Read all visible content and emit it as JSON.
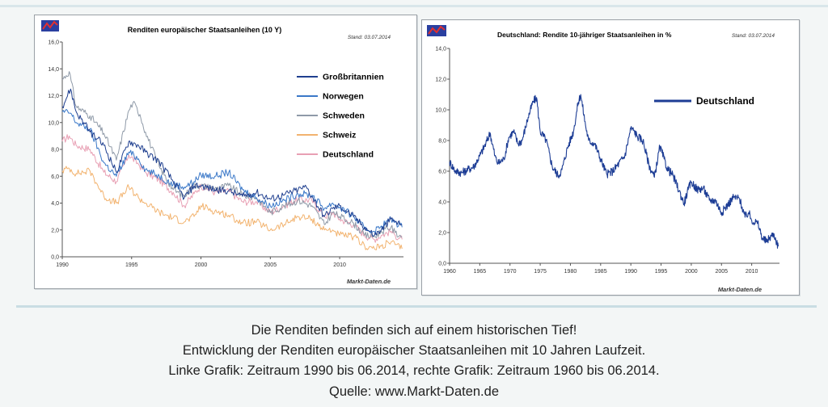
{
  "chart_data": [
    {
      "type": "line",
      "title": "Renditen europäischer Staatsanleihen (10 Y)",
      "stand": "Stand: 03.07.2014",
      "source_label": "Markt-Daten.de",
      "ylim": [
        0,
        16
      ],
      "yticks": [
        "0,0",
        "2,0",
        "4,0",
        "6,0",
        "8,0",
        "10,0",
        "12,0",
        "14,0",
        "16,0"
      ],
      "xlim": [
        1990,
        2014.6
      ],
      "xticks": [
        "1990",
        "1995",
        "2000",
        "2005",
        "2010"
      ],
      "grid": false,
      "legend_position": "top-right",
      "series": [
        {
          "name": "Großbritannien",
          "color": "#1f3f8f",
          "x": [
            1990,
            1990.6,
            1991,
            1992,
            1993,
            1993.9,
            1994.8,
            1995.5,
            1996,
            1997,
            1998,
            1998.8,
            1999.5,
            2000,
            2001,
            2002,
            2003,
            2004,
            2005,
            2006,
            2007,
            2007.6,
            2008,
            2008.9,
            2009.5,
            2010,
            2011,
            2011.8,
            2012.5,
            2013,
            2013.7,
            2014,
            2014.5
          ],
          "y": [
            11.2,
            12.5,
            10.8,
            9.3,
            8.3,
            6.3,
            8.6,
            8.3,
            7.8,
            7.1,
            5.6,
            4.4,
            5.3,
            5.3,
            5.0,
            4.9,
            4.5,
            4.8,
            4.3,
            4.6,
            5.0,
            5.2,
            4.5,
            3.0,
            3.6,
            3.8,
            3.0,
            2.2,
            1.6,
            2.0,
            2.8,
            2.6,
            2.4
          ]
        },
        {
          "name": "Norwegen",
          "color": "#3a78c8",
          "x": [
            1990,
            1990.6,
            1991,
            1992,
            1993,
            1993.9,
            1994.8,
            1995.5,
            1996,
            1997,
            1998,
            1998.8,
            1999.5,
            2000,
            2001,
            2002,
            2003,
            2004,
            2005,
            2006,
            2007,
            2008,
            2008.9,
            2009.5,
            2010,
            2011,
            2011.8,
            2012.5,
            2013,
            2013.7,
            2014,
            2014.5
          ],
          "y": [
            10.8,
            10.7,
            10.0,
            9.5,
            7.0,
            6.0,
            7.8,
            7.3,
            6.5,
            6.0,
            5.4,
            5.2,
            5.6,
            6.1,
            6.0,
            6.3,
            5.0,
            4.4,
            3.8,
            4.2,
            4.7,
            4.6,
            3.6,
            4.0,
            3.7,
            3.0,
            2.1,
            1.9,
            2.3,
            2.8,
            2.6,
            2.2
          ]
        },
        {
          "name": "Schweden",
          "color": "#8f9aa8",
          "x": [
            1990,
            1990.5,
            1991,
            1992,
            1993,
            1993.9,
            1994.8,
            1995.1,
            1995.6,
            1996,
            1996.8,
            1997,
            1998,
            1998.8,
            1999.5,
            2000,
            2001,
            2002,
            2003,
            2004,
            2005,
            2006,
            2007,
            2008,
            2008.9,
            2009.5,
            2010,
            2011,
            2011.8,
            2012.5,
            2013,
            2013.7,
            2014,
            2014.5
          ],
          "y": [
            13.2,
            13.8,
            11.2,
            10.5,
            9.2,
            7.2,
            10.9,
            11.5,
            10.6,
            9.3,
            7.2,
            6.7,
            5.0,
            4.5,
            5.4,
            5.3,
            5.1,
            5.3,
            4.6,
            4.4,
            3.3,
            3.8,
            4.2,
            3.8,
            2.4,
            3.3,
            3.0,
            2.5,
            1.6,
            1.5,
            1.9,
            2.2,
            1.8,
            1.5
          ]
        },
        {
          "name": "Schweiz",
          "color": "#f2b36f",
          "x": [
            1990,
            1990.5,
            1991,
            1992,
            1993,
            1993.9,
            1994.8,
            1995.5,
            1996,
            1997,
            1998,
            1998.8,
            1999.5,
            2000,
            2001,
            2002,
            2003,
            2004,
            2005,
            2006,
            2007,
            2008,
            2008.9,
            2009.5,
            2010,
            2011,
            2011.8,
            2012.5,
            2013,
            2013.7,
            2014,
            2014.5
          ],
          "y": [
            6.4,
            6.6,
            6.2,
            6.4,
            4.5,
            4.0,
            5.2,
            4.4,
            4.0,
            3.3,
            2.9,
            2.6,
            3.0,
            3.8,
            3.4,
            3.1,
            2.5,
            2.6,
            2.0,
            2.4,
            3.0,
            2.8,
            2.0,
            2.0,
            1.6,
            1.5,
            0.8,
            0.6,
            0.8,
            1.1,
            0.9,
            0.6
          ]
        },
        {
          "name": "Deutschland",
          "color": "#e8a0b4",
          "x": [
            1990,
            1990.5,
            1991,
            1992,
            1993,
            1993.9,
            1994.8,
            1995.5,
            1996,
            1997,
            1998,
            1998.8,
            1999.5,
            2000,
            2001,
            2002,
            2003,
            2004,
            2005,
            2006,
            2007,
            2008,
            2008.9,
            2009.5,
            2010,
            2011,
            2011.8,
            2012.5,
            2013,
            2013.7,
            2014,
            2014.5
          ],
          "y": [
            8.6,
            9.0,
            8.3,
            8.0,
            6.3,
            5.6,
            7.6,
            6.9,
            6.3,
            5.7,
            4.8,
            3.8,
            4.7,
            5.3,
            4.8,
            4.9,
            4.1,
            4.1,
            3.3,
            3.8,
            4.3,
            4.2,
            3.0,
            3.3,
            2.8,
            2.4,
            1.6,
            1.3,
            1.6,
            1.9,
            1.6,
            1.3
          ]
        }
      ]
    },
    {
      "type": "line",
      "title": "Deutschland: Rendite 10-jähriger Staatsanleihen in %",
      "stand": "Stand: 03.07.2014",
      "source_label": "Markt-Daten.de",
      "ylim": [
        0,
        14
      ],
      "yticks": [
        "0,0",
        "2,0",
        "4,0",
        "6,0",
        "8,0",
        "10,0",
        "12,0",
        "14,0"
      ],
      "xlim": [
        1960,
        2014.6
      ],
      "xticks": [
        "1960",
        "1965",
        "1970",
        "1975",
        "1980",
        "1985",
        "1990",
        "1995",
        "2000",
        "2005",
        "2010"
      ],
      "grid": false,
      "legend_position": "top-right",
      "series": [
        {
          "name": "Deutschland",
          "color": "#1d3d95",
          "x": [
            1960,
            1961,
            1962,
            1963,
            1964,
            1965,
            1966,
            1966.7,
            1967.5,
            1968,
            1969,
            1969.8,
            1970.6,
            1971.3,
            1972,
            1973,
            1973.8,
            1974.4,
            1975,
            1976,
            1977,
            1978,
            1978.6,
            1979.5,
            1980.5,
            1981.3,
            1981.7,
            1982.5,
            1983,
            1984,
            1985,
            1986,
            1987,
            1988,
            1989,
            1990,
            1990.6,
            1991,
            1992,
            1993,
            1993.9,
            1994.8,
            1995.5,
            1996,
            1997,
            1998,
            1998.8,
            1999.5,
            2000,
            2001,
            2002,
            2003,
            2004,
            2005,
            2006,
            2007,
            2008,
            2008.9,
            2009.5,
            2010,
            2011,
            2011.8,
            2012.5,
            2013,
            2013.7,
            2014,
            2014.4
          ],
          "y": [
            6.6,
            6.0,
            5.9,
            6.1,
            6.3,
            7.0,
            7.8,
            8.5,
            7.0,
            6.5,
            6.8,
            8.2,
            8.6,
            7.8,
            8.0,
            9.5,
            10.5,
            10.8,
            8.6,
            8.0,
            6.3,
            5.7,
            6.1,
            7.5,
            8.6,
            10.5,
            11.0,
            9.0,
            8.0,
            7.8,
            6.8,
            5.8,
            6.0,
            6.5,
            7.0,
            8.8,
            8.6,
            8.3,
            8.0,
            6.4,
            5.6,
            7.6,
            6.8,
            6.2,
            5.7,
            4.7,
            3.9,
            4.8,
            5.3,
            4.8,
            4.9,
            4.1,
            4.1,
            3.3,
            3.8,
            4.3,
            4.2,
            3.0,
            3.3,
            2.8,
            2.6,
            1.6,
            1.4,
            1.7,
            1.9,
            1.5,
            1.1
          ]
        }
      ]
    }
  ],
  "caption": {
    "line1": "Die Renditen befinden sich auf einem historischen Tief!",
    "line2": "Entwicklung der Renditen europäischer Staatsanleihen mit 10 Jahren Laufzeit.",
    "line3": "Linke Grafik: Zeitraum 1990 bis 06.2014, rechte Grafik: Zeitraum 1960 bis 06.2014.",
    "line4": "Quelle: www.Markt-Daten.de"
  },
  "colors": {
    "logo_bg": "#2a3fa0",
    "logo_accent": "#e03030",
    "axis": "#555555"
  },
  "icons": {
    "logo": "markt-daten-logo-icon"
  }
}
